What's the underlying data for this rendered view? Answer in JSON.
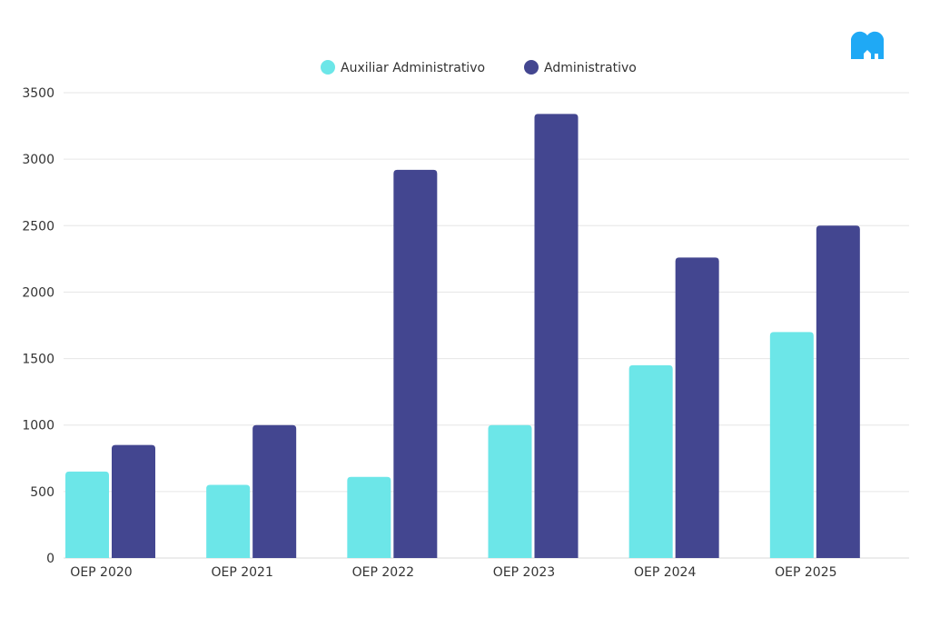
{
  "logo": {
    "name": "M",
    "color": "#1fa9f5"
  },
  "chart_data": {
    "type": "bar",
    "title": "",
    "xlabel": "",
    "ylabel": "",
    "categories": [
      "OEP 2020",
      "OEP 2021",
      "OEP 2022",
      "OEP 2023",
      "OEP 2024",
      "OEP 2025"
    ],
    "series": [
      {
        "name": "Auxiliar Administrativo",
        "color": "#6ce6e8",
        "values": [
          650,
          550,
          610,
          1000,
          1450,
          1700
        ]
      },
      {
        "name": "Administrativo",
        "color": "#434690",
        "values": [
          850,
          1000,
          2920,
          3340,
          2260,
          2500
        ]
      }
    ],
    "ylim": [
      0,
      3500
    ],
    "yticks": [
      0,
      500,
      1000,
      1500,
      2000,
      2500,
      3000,
      3500
    ],
    "ytick_labels": [
      "0",
      "500",
      "1000",
      "1500",
      "2000",
      "2500",
      "3000",
      "3500"
    ],
    "grid": true,
    "legend_position": "top-center"
  }
}
